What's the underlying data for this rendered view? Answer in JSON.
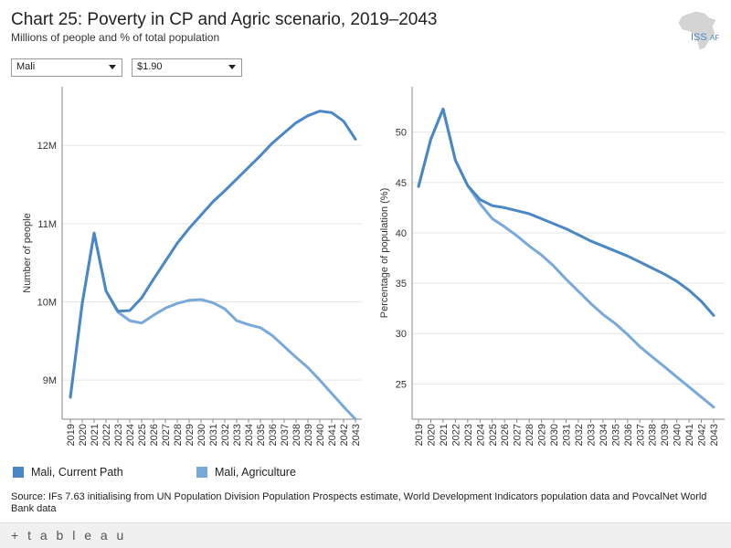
{
  "header": {
    "title": "Chart 25: Poverty in CP and Agric scenario, 2019–2043",
    "subtitle": "Millions of people and % of total population",
    "logo_text": "ISS",
    "logo_sub": "AF"
  },
  "filters": {
    "country": "Mali",
    "poverty_line": "$1.90"
  },
  "colors": {
    "current_path": "#4a87c6",
    "agriculture": "#79a9db",
    "gridline": "#e6e6e6",
    "axis": "#888888"
  },
  "chart_data": [
    {
      "type": "line",
      "title": "",
      "xlabel": "",
      "ylabel": "Number of people",
      "ylim": [
        8.5,
        12.75
      ],
      "yticks": [
        9,
        10,
        11,
        12
      ],
      "ytick_labels": [
        "9M",
        "10M",
        "11M",
        "12M"
      ],
      "categories": [
        "2019",
        "2020",
        "2021",
        "2022",
        "2023",
        "2024",
        "2025",
        "2026",
        "2027",
        "2028",
        "2029",
        "2030",
        "2031",
        "2032",
        "2033",
        "2034",
        "2035",
        "2036",
        "2037",
        "2038",
        "2039",
        "2040",
        "2041",
        "2042",
        "2043"
      ],
      "series": [
        {
          "name": "Mali, Current Path",
          "values": [
            8.78,
            9.98,
            10.88,
            10.14,
            9.88,
            9.89,
            10.05,
            10.29,
            10.52,
            10.75,
            10.94,
            11.11,
            11.28,
            11.42,
            11.57,
            11.72,
            11.87,
            12.03,
            12.16,
            12.29,
            12.38,
            12.44,
            12.42,
            12.31,
            12.08
          ]
        },
        {
          "name": "Mali, Agriculture",
          "values": [
            8.78,
            9.98,
            10.88,
            10.14,
            9.87,
            9.76,
            9.73,
            9.83,
            9.92,
            9.98,
            10.02,
            10.03,
            9.99,
            9.91,
            9.76,
            9.71,
            9.67,
            9.57,
            9.43,
            9.29,
            9.16,
            9.0,
            8.83,
            8.66,
            8.5
          ]
        }
      ]
    },
    {
      "type": "line",
      "title": "",
      "xlabel": "",
      "ylabel": "Percentage of population (%)",
      "ylim": [
        21.5,
        54.5
      ],
      "yticks": [
        25,
        30,
        35,
        40,
        45,
        50
      ],
      "ytick_labels": [
        "25",
        "30",
        "35",
        "40",
        "45",
        "50"
      ],
      "categories": [
        "2019",
        "2020",
        "2021",
        "2022",
        "2023",
        "2024",
        "2025",
        "2026",
        "2027",
        "2028",
        "2029",
        "2030",
        "2031",
        "2032",
        "2033",
        "2034",
        "2035",
        "2036",
        "2037",
        "2038",
        "2039",
        "2040",
        "2041",
        "2042",
        "2043"
      ],
      "series": [
        {
          "name": "Mali, Current Path",
          "values": [
            44.6,
            49.3,
            52.3,
            47.2,
            44.7,
            43.3,
            42.7,
            42.5,
            42.2,
            41.9,
            41.4,
            40.9,
            40.4,
            39.8,
            39.2,
            38.7,
            38.2,
            37.7,
            37.1,
            36.5,
            35.9,
            35.2,
            34.3,
            33.2,
            31.8
          ]
        },
        {
          "name": "Mali, Agriculture",
          "values": [
            44.6,
            49.3,
            52.3,
            47.2,
            44.7,
            42.9,
            41.4,
            40.6,
            39.7,
            38.7,
            37.8,
            36.7,
            35.4,
            34.2,
            33.0,
            31.9,
            31.0,
            29.9,
            28.7,
            27.7,
            26.7,
            25.7,
            24.7,
            23.7,
            22.7
          ]
        }
      ]
    }
  ],
  "legend": {
    "items": [
      {
        "label": "Mali, Current Path"
      },
      {
        "label": "Mali, Agriculture"
      }
    ]
  },
  "source": "Source: IFs 7.63 initialising from UN Population Division Population Prospects estimate, World Development Indicators population data and PovcalNet World Bank data",
  "footer": {
    "brand": "+ t a b l e a u"
  }
}
